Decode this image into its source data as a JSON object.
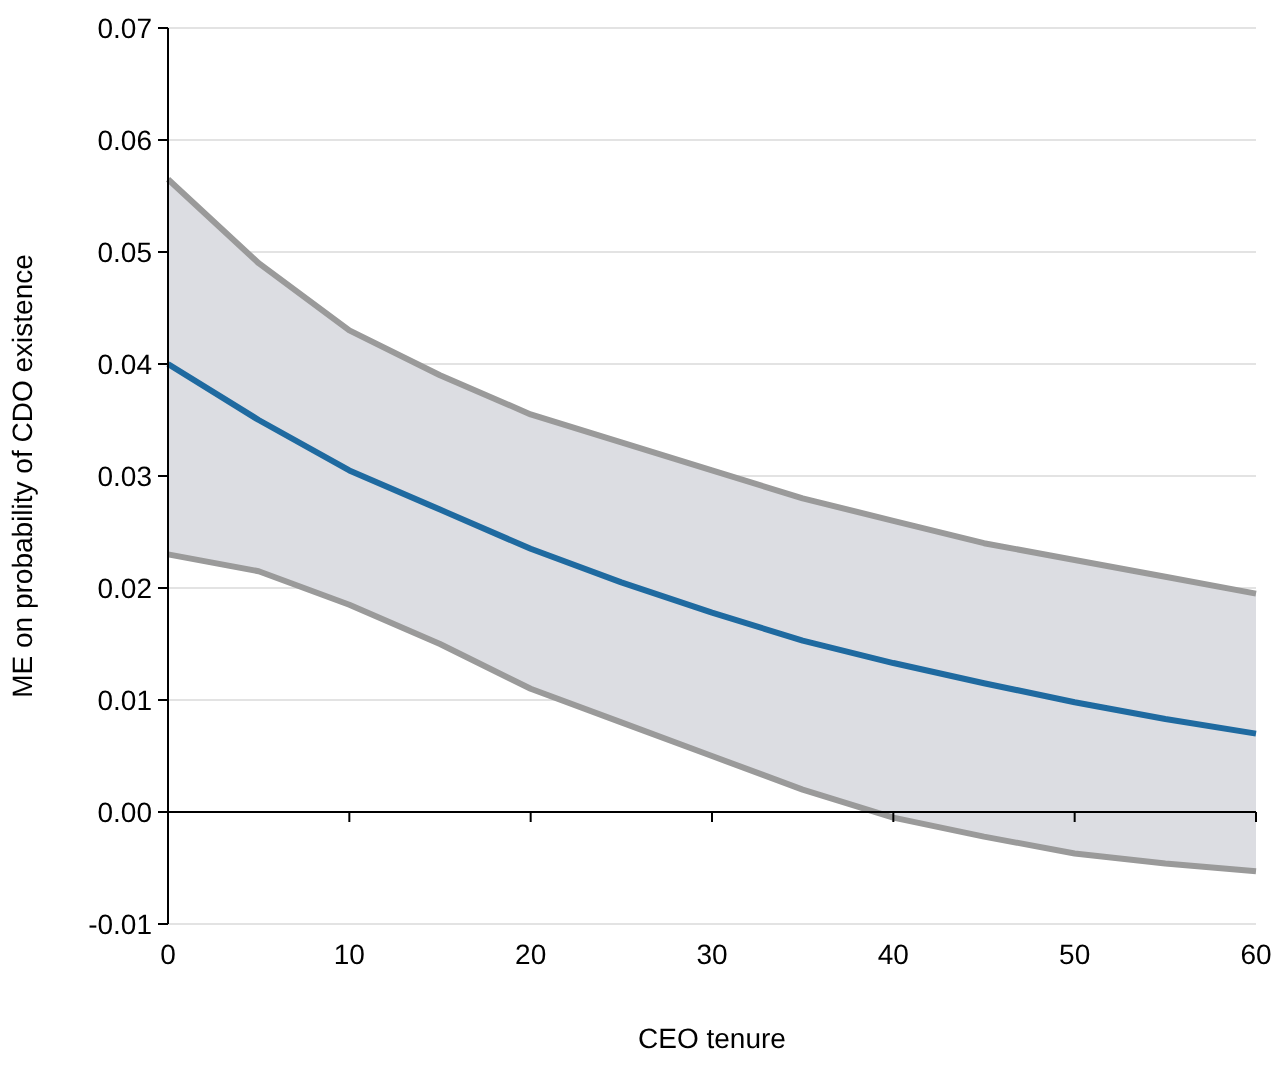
{
  "chart_data": {
    "type": "line",
    "xlabel": "CEO tenure",
    "ylabel": "ME on probability  of CDO existence",
    "x": [
      0,
      5,
      10,
      15,
      20,
      25,
      30,
      35,
      40,
      45,
      50,
      55,
      60
    ],
    "series": [
      {
        "color": "#1f6aa0",
        "values": [
          0.04,
          0.035,
          0.0305,
          0.027,
          0.0235,
          0.0205,
          0.0178,
          0.0153,
          0.0133,
          0.0115,
          0.0098,
          0.0083,
          0.007
        ],
        "lower": [
          0.023,
          0.0215,
          0.0185,
          0.015,
          0.011,
          0.008,
          0.005,
          0.002,
          -0.0005,
          -0.0022,
          -0.0037,
          -0.0046,
          -0.0053
        ],
        "upper": [
          0.0565,
          0.049,
          0.043,
          0.039,
          0.0355,
          0.033,
          0.0305,
          0.028,
          0.026,
          0.024,
          0.0225,
          0.021,
          0.0195
        ]
      },
      {
        "color": "#9a9a9a",
        "values": [
          0.023,
          0.0215,
          0.0185,
          0.015,
          0.011,
          0.008,
          0.005,
          0.002,
          -0.0005,
          -0.0022,
          -0.0037,
          -0.0046,
          -0.0053
        ]
      },
      {
        "color": "#9a9a9a",
        "values": [
          0.0565,
          0.049,
          0.043,
          0.039,
          0.0355,
          0.033,
          0.0305,
          0.028,
          0.026,
          0.024,
          0.0225,
          0.021,
          0.0195
        ]
      }
    ],
    "xlim": [
      0,
      60
    ],
    "xticks": [
      0,
      10,
      20,
      30,
      40,
      50,
      60
    ],
    "ylim": [
      -0.01,
      0.07
    ],
    "yticks": [
      {
        "value": -0.01,
        "label": "-0.01"
      },
      {
        "value": 0,
        "label": "0.00"
      },
      {
        "value": 0.01,
        "label": "0.01"
      },
      {
        "value": 0.02,
        "label": "0.02"
      },
      {
        "value": 0.03,
        "label": "0.03"
      },
      {
        "value": 0.04,
        "label": "0.04"
      },
      {
        "value": 0.05,
        "label": "0.05"
      },
      {
        "value": 0.06,
        "label": "0.06"
      },
      {
        "value": 0.07,
        "label": "0.07"
      }
    ],
    "grid": "y"
  }
}
